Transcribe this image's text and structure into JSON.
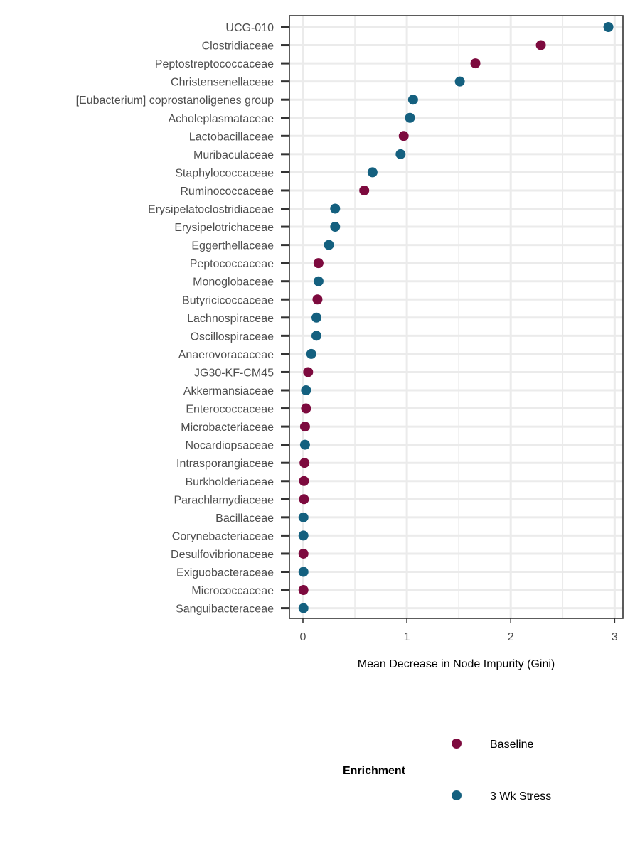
{
  "chart_data": {
    "type": "scatter",
    "xlabel": "Mean Decrease in Node Impurity (Gini)",
    "ylabel": "",
    "xlim": [
      -0.13,
      3.08
    ],
    "x_ticks": [
      0,
      1,
      2,
      3
    ],
    "grid": true,
    "legend_position": "bottom",
    "legend": {
      "title": "Enrichment",
      "entries": [
        {
          "name": "Baseline",
          "color": "#7d0a3e"
        },
        {
          "name": "3 Wk Stress",
          "color": "#14607f"
        }
      ]
    },
    "categories": [
      "UCG-010",
      "Clostridiaceae",
      "Peptostreptococcaceae",
      "Christensenellaceae",
      "[Eubacterium] coprostanoligenes group",
      "Acholeplasmataceae",
      "Lactobacillaceae",
      "Muribaculaceae",
      "Staphylococcaceae",
      "Ruminococcaceae",
      "Erysipelatoclostridiaceae",
      "Erysipelotrichaceae",
      "Eggerthellaceae",
      "Peptococcaceae",
      "Monoglobaceae",
      "Butyricicoccaceae",
      "Lachnospiraceae",
      "Oscillospiraceae",
      "Anaerovoracaceae",
      "JG30-KF-CM45",
      "Akkermansiaceae",
      "Enterococcaceae",
      "Microbacteriaceae",
      "Nocardiopsaceae",
      "Intrasporangiaceae",
      "Burkholderiaceae",
      "Parachlamydiaceae",
      "Bacillaceae",
      "Corynebacteriaceae",
      "Desulfovibrionaceae",
      "Exiguobacteraceae",
      "Micrococcaceae",
      "Sanguibacteraceae"
    ],
    "points": [
      {
        "category": "UCG-010",
        "x": 2.94,
        "group": "3 Wk Stress"
      },
      {
        "category": "Clostridiaceae",
        "x": 2.29,
        "group": "Baseline"
      },
      {
        "category": "Peptostreptococcaceae",
        "x": 1.66,
        "group": "Baseline"
      },
      {
        "category": "Christensenellaceae",
        "x": 1.51,
        "group": "3 Wk Stress"
      },
      {
        "category": "[Eubacterium] coprostanoligenes group",
        "x": 1.06,
        "group": "3 Wk Stress"
      },
      {
        "category": "Acholeplasmataceae",
        "x": 1.03,
        "group": "3 Wk Stress"
      },
      {
        "category": "Lactobacillaceae",
        "x": 0.97,
        "group": "Baseline"
      },
      {
        "category": "Muribaculaceae",
        "x": 0.94,
        "group": "3 Wk Stress"
      },
      {
        "category": "Staphylococcaceae",
        "x": 0.67,
        "group": "3 Wk Stress"
      },
      {
        "category": "Ruminococcaceae",
        "x": 0.59,
        "group": "Baseline"
      },
      {
        "category": "Erysipelatoclostridiaceae",
        "x": 0.31,
        "group": "3 Wk Stress"
      },
      {
        "category": "Erysipelotrichaceae",
        "x": 0.31,
        "group": "3 Wk Stress"
      },
      {
        "category": "Eggerthellaceae",
        "x": 0.25,
        "group": "3 Wk Stress"
      },
      {
        "category": "Peptococcaceae",
        "x": 0.15,
        "group": "Baseline"
      },
      {
        "category": "Monoglobaceae",
        "x": 0.15,
        "group": "3 Wk Stress"
      },
      {
        "category": "Butyricicoccaceae",
        "x": 0.14,
        "group": "Baseline"
      },
      {
        "category": "Lachnospiraceae",
        "x": 0.13,
        "group": "3 Wk Stress"
      },
      {
        "category": "Oscillospiraceae",
        "x": 0.13,
        "group": "3 Wk Stress"
      },
      {
        "category": "Anaerovoracaceae",
        "x": 0.08,
        "group": "3 Wk Stress"
      },
      {
        "category": "JG30-KF-CM45",
        "x": 0.05,
        "group": "Baseline"
      },
      {
        "category": "Akkermansiaceae",
        "x": 0.03,
        "group": "3 Wk Stress"
      },
      {
        "category": "Enterococcaceae",
        "x": 0.03,
        "group": "Baseline"
      },
      {
        "category": "Microbacteriaceae",
        "x": 0.02,
        "group": "Baseline"
      },
      {
        "category": "Nocardiopsaceae",
        "x": 0.02,
        "group": "3 Wk Stress"
      },
      {
        "category": "Intrasporangiaceae",
        "x": 0.015,
        "group": "Baseline"
      },
      {
        "category": "Burkholderiaceae",
        "x": 0.01,
        "group": "Baseline"
      },
      {
        "category": "Parachlamydiaceae",
        "x": 0.01,
        "group": "Baseline"
      },
      {
        "category": "Bacillaceae",
        "x": 0.005,
        "group": "3 Wk Stress"
      },
      {
        "category": "Corynebacteriaceae",
        "x": 0.005,
        "group": "3 Wk Stress"
      },
      {
        "category": "Desulfovibrionaceae",
        "x": 0.005,
        "group": "Baseline"
      },
      {
        "category": "Exiguobacteraceae",
        "x": 0.005,
        "group": "3 Wk Stress"
      },
      {
        "category": "Micrococcaceae",
        "x": 0.005,
        "group": "Baseline"
      },
      {
        "category": "Sanguibacteraceae",
        "x": 0.005,
        "group": "3 Wk Stress"
      }
    ]
  }
}
